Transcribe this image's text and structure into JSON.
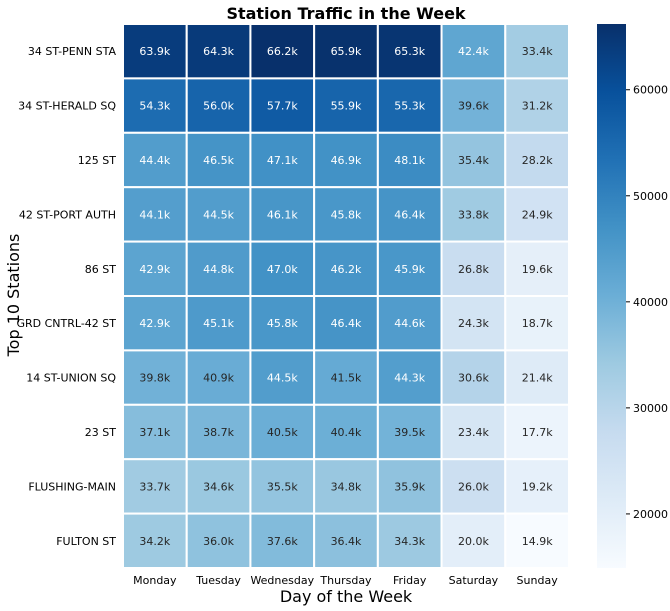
{
  "chart_data": {
    "type": "heatmap",
    "title": "Station Traffic in the Week",
    "xlabel": "Day of the Week",
    "ylabel": "Top 10 Stations",
    "x_categories": [
      "Monday",
      "Tuesday",
      "Wednesday",
      "Thursday",
      "Friday",
      "Saturday",
      "Sunday"
    ],
    "y_categories": [
      "34 ST-PENN STA",
      "34 ST-HERALD SQ",
      "125 ST",
      "42 ST-PORT AUTH",
      "86 ST",
      "GRD CNTRL-42 ST",
      "14 ST-UNION SQ",
      "23 ST",
      "FLUSHING-MAIN",
      "FULTON ST"
    ],
    "labels": [
      [
        "63.9k",
        "64.3k",
        "66.2k",
        "65.9k",
        "65.3k",
        "42.4k",
        "33.4k"
      ],
      [
        "54.3k",
        "56.0k",
        "57.7k",
        "55.9k",
        "55.3k",
        "39.6k",
        "31.2k"
      ],
      [
        "44.4k",
        "46.5k",
        "47.1k",
        "46.9k",
        "48.1k",
        "35.4k",
        "28.2k"
      ],
      [
        "44.1k",
        "44.5k",
        "46.1k",
        "45.8k",
        "46.4k",
        "33.8k",
        "24.9k"
      ],
      [
        "42.9k",
        "44.8k",
        "47.0k",
        "46.2k",
        "45.9k",
        "26.8k",
        "19.6k"
      ],
      [
        "42.9k",
        "45.1k",
        "45.8k",
        "46.4k",
        "44.6k",
        "24.3k",
        "18.7k"
      ],
      [
        "39.8k",
        "40.9k",
        "44.5k",
        "41.5k",
        "44.3k",
        "30.6k",
        "21.4k"
      ],
      [
        "37.1k",
        "38.7k",
        "40.5k",
        "40.4k",
        "39.5k",
        "23.4k",
        "17.7k"
      ],
      [
        "33.7k",
        "34.6k",
        "35.5k",
        "34.8k",
        "35.9k",
        "26.0k",
        "19.2k"
      ],
      [
        "34.2k",
        "36.0k",
        "37.6k",
        "36.4k",
        "34.3k",
        "20.0k",
        "14.9k"
      ]
    ],
    "values": [
      [
        63900,
        64300,
        66200,
        65900,
        65300,
        42400,
        33400
      ],
      [
        54300,
        56000,
        57700,
        55900,
        55300,
        39600,
        31200
      ],
      [
        44400,
        46500,
        47100,
        46900,
        48100,
        35400,
        28200
      ],
      [
        44100,
        44500,
        46100,
        45800,
        46400,
        33800,
        24900
      ],
      [
        42900,
        44800,
        47000,
        46200,
        45900,
        26800,
        19600
      ],
      [
        42900,
        45100,
        45800,
        46400,
        44600,
        24300,
        18700
      ],
      [
        39800,
        40900,
        44500,
        41500,
        44300,
        30600,
        21400
      ],
      [
        37100,
        38700,
        40500,
        40400,
        39500,
        23400,
        17700
      ],
      [
        33700,
        34600,
        35500,
        34800,
        35900,
        26000,
        19200
      ],
      [
        34200,
        36000,
        37600,
        36400,
        34300,
        20000,
        14900
      ]
    ],
    "colorbar": {
      "colormap": "Blues",
      "vmin": 14900,
      "vmax": 66200,
      "ticks": [
        20000,
        30000,
        40000,
        50000,
        60000
      ]
    }
  }
}
